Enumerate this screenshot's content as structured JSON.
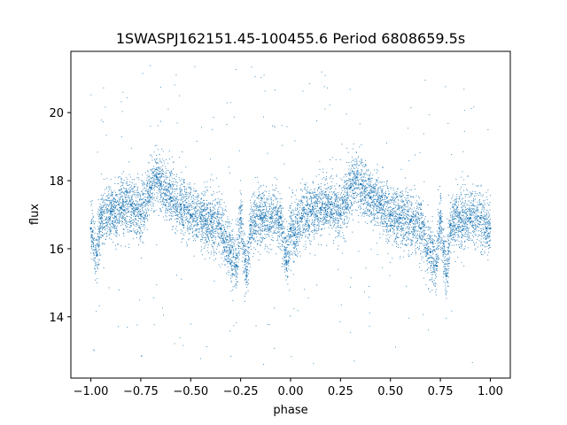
{
  "chart_data": {
    "type": "scatter",
    "title": "1SWASPJ162151.45-100455.6 Period 6808659.5s",
    "xlabel": "phase",
    "ylabel": "flux",
    "xlim": [
      -1.1,
      1.1
    ],
    "ylim": [
      12.2,
      21.8
    ],
    "xticks": [
      -1.0,
      -0.75,
      -0.5,
      -0.25,
      0.0,
      0.25,
      0.5,
      0.75,
      1.0
    ],
    "xtick_labels": [
      "−1.00",
      "−0.75",
      "−0.50",
      "−0.25",
      "0.00",
      "0.25",
      "0.50",
      "0.75",
      "1.00"
    ],
    "yticks": [
      14,
      16,
      18,
      20
    ],
    "ytick_labels": [
      "14",
      "16",
      "18",
      "20"
    ],
    "grid": false,
    "point_color": "#1f77b4",
    "series": [
      {
        "x": [
          -1.0,
          -0.97,
          -0.95,
          -0.9,
          -0.85,
          -0.8,
          -0.75,
          -0.7,
          -0.67,
          -0.65,
          -0.6,
          -0.55,
          -0.5,
          -0.45,
          -0.4,
          -0.35,
          -0.3,
          -0.27,
          -0.25,
          -0.22,
          -0.2,
          -0.15,
          -0.1,
          -0.05,
          -0.02,
          0.0,
          0.02,
          0.05,
          0.1,
          0.15,
          0.2,
          0.25,
          0.3,
          0.33,
          0.35,
          0.4,
          0.45,
          0.5,
          0.55,
          0.6,
          0.65,
          0.7,
          0.73,
          0.75,
          0.78,
          0.8,
          0.85,
          0.9,
          0.95,
          0.98,
          1.0
        ],
        "y": [
          16.6,
          15.8,
          16.9,
          17.1,
          17.2,
          17.3,
          17.0,
          17.8,
          18.1,
          17.9,
          17.5,
          17.3,
          17.0,
          16.9,
          16.8,
          16.6,
          15.9,
          15.5,
          16.9,
          15.2,
          16.7,
          16.9,
          16.9,
          16.9,
          15.6,
          16.6,
          16.4,
          16.9,
          17.1,
          17.2,
          17.3,
          17.0,
          17.8,
          18.1,
          17.9,
          17.5,
          17.3,
          17.0,
          16.9,
          16.8,
          16.6,
          15.9,
          15.5,
          16.9,
          15.2,
          16.7,
          16.9,
          16.9,
          16.9,
          16.6,
          16.6
        ]
      }
    ]
  }
}
